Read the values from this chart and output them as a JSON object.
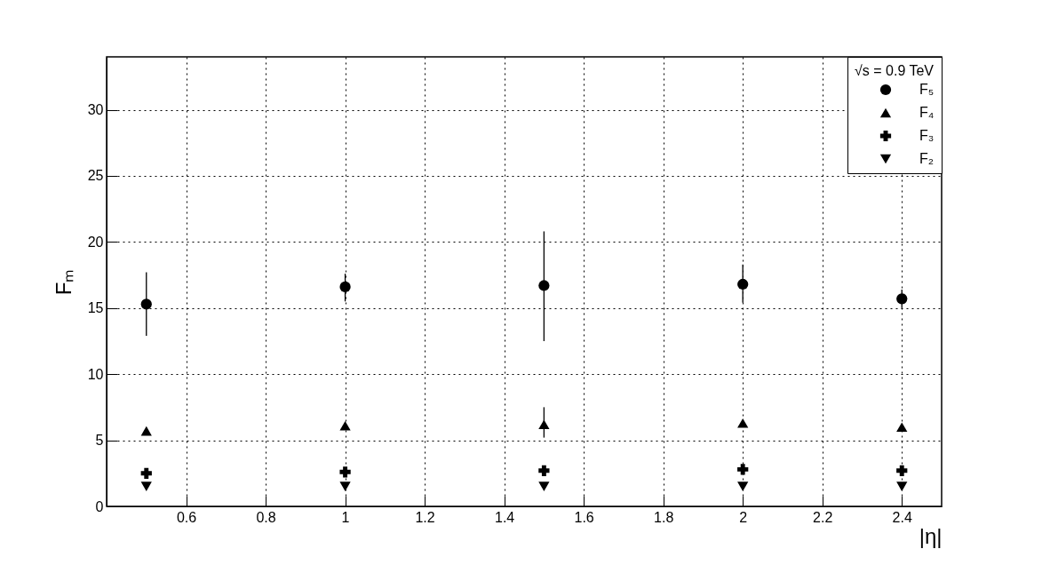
{
  "chart_data": {
    "type": "scatter",
    "xlabel": "|η|",
    "ylabel": "Fₘ",
    "legend_title": "√s = 0.9 TeV",
    "x": [
      0.5,
      1,
      1.5,
      2,
      2.4
    ],
    "xlim": [
      0.4,
      2.5
    ],
    "xticks": [
      0.6,
      0.8,
      1,
      1.2,
      1.4,
      1.6,
      1.8,
      2,
      2.2,
      2.4
    ],
    "ylim": [
      0,
      34
    ],
    "yticks": [
      0,
      5,
      10,
      15,
      20,
      25,
      30
    ],
    "grid": true,
    "legend": "top right",
    "series": [
      {
        "name": "F₅",
        "color": "#000000",
        "marker": "circle",
        "values": [
          15.3,
          16.6,
          16.7,
          16.8,
          15.7
        ],
        "errors": [
          [
            12.9,
            17.7
          ],
          [
            15.5,
            17.6
          ],
          [
            12.5,
            20.8
          ],
          [
            15.4,
            18.3
          ],
          [
            15.0,
            16.4
          ]
        ]
      },
      {
        "name": "F₄",
        "color": "#000000",
        "marker": "triangle",
        "values": [
          5.7,
          6.1,
          6.2,
          6.3,
          6.0
        ],
        "errors": [
          null,
          null,
          [
            5.2,
            7.5
          ],
          null,
          null
        ]
      },
      {
        "name": "F₃",
        "color": "#000000",
        "marker": "cross",
        "values": [
          2.5,
          2.6,
          2.7,
          2.8,
          2.7
        ]
      },
      {
        "name": "F₂",
        "color": "#000000",
        "marker": "triangle-down",
        "values": [
          1.5,
          1.5,
          1.5,
          1.5,
          1.5
        ]
      }
    ]
  }
}
